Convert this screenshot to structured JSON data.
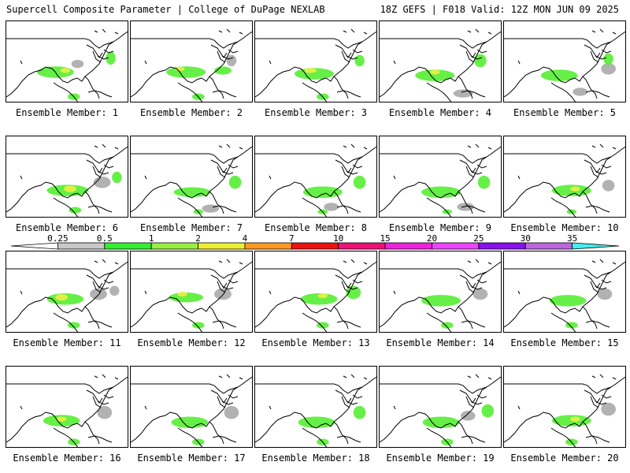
{
  "header": {
    "title_left": "Supercell Composite Parameter | College of DuPage NEXLAB",
    "title_right": "18Z GEFS | F018 Valid: 12Z MON JUN 09 2025"
  },
  "panels": [
    {
      "label": "Ensemble Member: 1",
      "blobs": [
        [
          0.4,
          0.62,
          0.3,
          0.14,
          "#55ee33"
        ],
        [
          0.58,
          0.52,
          0.1,
          0.1,
          "#aaaaaa"
        ],
        [
          0.85,
          0.45,
          0.08,
          0.16,
          "#55ee33"
        ],
        [
          0.55,
          0.92,
          0.1,
          0.08,
          "#55ee33"
        ],
        [
          0.48,
          0.6,
          0.08,
          0.06,
          "#eeee44"
        ]
      ]
    },
    {
      "label": "Ensemble Member: 2",
      "blobs": [
        [
          0.45,
          0.62,
          0.32,
          0.14,
          "#55ee33"
        ],
        [
          0.75,
          0.6,
          0.14,
          0.1,
          "#55ee33"
        ],
        [
          0.82,
          0.48,
          0.08,
          0.14,
          "#aaaaaa"
        ],
        [
          0.55,
          0.92,
          0.1,
          0.08,
          "#55ee33"
        ],
        [
          0.4,
          0.58,
          0.08,
          0.05,
          "#eeee44"
        ]
      ]
    },
    {
      "label": "Ensemble Member: 3",
      "blobs": [
        [
          0.48,
          0.64,
          0.32,
          0.14,
          "#55ee33"
        ],
        [
          0.85,
          0.48,
          0.08,
          0.14,
          "#55ee33"
        ],
        [
          0.55,
          0.92,
          0.1,
          0.08,
          "#55ee33"
        ],
        [
          0.45,
          0.6,
          0.1,
          0.06,
          "#eeee44"
        ]
      ]
    },
    {
      "label": "Ensemble Member: 4",
      "blobs": [
        [
          0.45,
          0.66,
          0.32,
          0.14,
          "#55ee33"
        ],
        [
          0.82,
          0.48,
          0.1,
          0.16,
          "#55ee33"
        ],
        [
          0.68,
          0.88,
          0.16,
          0.1,
          "#aaaaaa"
        ],
        [
          0.45,
          0.62,
          0.08,
          0.06,
          "#eeee44"
        ]
      ]
    },
    {
      "label": "Ensemble Member: 5",
      "blobs": [
        [
          0.45,
          0.66,
          0.3,
          0.14,
          "#55ee33"
        ],
        [
          0.85,
          0.58,
          0.12,
          0.14,
          "#aaaaaa"
        ],
        [
          0.85,
          0.46,
          0.08,
          0.14,
          "#55ee33"
        ],
        [
          0.62,
          0.86,
          0.12,
          0.1,
          "#aaaaaa"
        ]
      ]
    },
    {
      "label": "Ensemble Member: 6",
      "blobs": [
        [
          0.5,
          0.66,
          0.34,
          0.14,
          "#55ee33"
        ],
        [
          0.78,
          0.56,
          0.14,
          0.14,
          "#aaaaaa"
        ],
        [
          0.52,
          0.64,
          0.1,
          0.08,
          "#eeee44"
        ],
        [
          0.56,
          0.9,
          0.1,
          0.08,
          "#55ee33"
        ],
        [
          0.9,
          0.5,
          0.08,
          0.14,
          "#55ee33"
        ]
      ]
    },
    {
      "label": "Ensemble Member: 7",
      "blobs": [
        [
          0.5,
          0.68,
          0.3,
          0.12,
          "#55ee33"
        ],
        [
          0.85,
          0.56,
          0.1,
          0.16,
          "#55ee33"
        ],
        [
          0.65,
          0.88,
          0.14,
          0.1,
          "#aaaaaa"
        ],
        [
          0.55,
          0.92,
          0.08,
          0.06,
          "#55ee33"
        ]
      ]
    },
    {
      "label": "Ensemble Member: 8",
      "blobs": [
        [
          0.55,
          0.68,
          0.32,
          0.14,
          "#55ee33"
        ],
        [
          0.85,
          0.56,
          0.1,
          0.16,
          "#55ee33"
        ],
        [
          0.62,
          0.86,
          0.12,
          0.1,
          "#aaaaaa"
        ],
        [
          0.55,
          0.92,
          0.08,
          0.06,
          "#55ee33"
        ]
      ]
    },
    {
      "label": "Ensemble Member: 9",
      "blobs": [
        [
          0.5,
          0.68,
          0.32,
          0.14,
          "#55ee33"
        ],
        [
          0.85,
          0.56,
          0.1,
          0.16,
          "#55ee33"
        ],
        [
          0.7,
          0.86,
          0.14,
          0.1,
          "#aaaaaa"
        ],
        [
          0.55,
          0.92,
          0.08,
          0.06,
          "#55ee33"
        ]
      ]
    },
    {
      "label": "Ensemble Member: 10",
      "blobs": [
        [
          0.55,
          0.66,
          0.32,
          0.14,
          "#55ee33"
        ],
        [
          0.85,
          0.6,
          0.1,
          0.14,
          "#aaaaaa"
        ],
        [
          0.58,
          0.64,
          0.08,
          0.06,
          "#eeee44"
        ],
        [
          0.55,
          0.92,
          0.08,
          0.06,
          "#55ee33"
        ]
      ]
    },
    {
      "label": "Ensemble Member: 11",
      "blobs": [
        [
          0.48,
          0.58,
          0.3,
          0.14,
          "#55ee33"
        ],
        [
          0.75,
          0.52,
          0.14,
          0.14,
          "#aaaaaa"
        ],
        [
          0.45,
          0.56,
          0.1,
          0.08,
          "#eeee44"
        ],
        [
          0.55,
          0.9,
          0.1,
          0.08,
          "#55ee33"
        ],
        [
          0.88,
          0.48,
          0.08,
          0.12,
          "#aaaaaa"
        ]
      ]
    },
    {
      "label": "Ensemble Member: 12",
      "blobs": [
        [
          0.45,
          0.56,
          0.28,
          0.12,
          "#55ee33"
        ],
        [
          0.75,
          0.52,
          0.14,
          0.14,
          "#aaaaaa"
        ],
        [
          0.42,
          0.52,
          0.08,
          0.06,
          "#eeee44"
        ],
        [
          0.55,
          0.9,
          0.1,
          0.08,
          "#55ee33"
        ]
      ]
    },
    {
      "label": "Ensemble Member: 13",
      "blobs": [
        [
          0.52,
          0.58,
          0.3,
          0.14,
          "#55ee33"
        ],
        [
          0.8,
          0.5,
          0.12,
          0.16,
          "#55ee33"
        ],
        [
          0.55,
          0.54,
          0.08,
          0.06,
          "#eeee44"
        ],
        [
          0.55,
          0.9,
          0.1,
          0.08,
          "#55ee33"
        ]
      ]
    },
    {
      "label": "Ensemble Member: 14",
      "blobs": [
        [
          0.5,
          0.6,
          0.32,
          0.14,
          "#55ee33"
        ],
        [
          0.82,
          0.52,
          0.12,
          0.14,
          "#aaaaaa"
        ],
        [
          0.55,
          0.9,
          0.1,
          0.08,
          "#55ee33"
        ]
      ]
    },
    {
      "label": "Ensemble Member: 15",
      "blobs": [
        [
          0.52,
          0.6,
          0.3,
          0.14,
          "#55ee33"
        ],
        [
          0.82,
          0.52,
          0.12,
          0.14,
          "#aaaaaa"
        ],
        [
          0.55,
          0.9,
          0.1,
          0.08,
          "#55ee33"
        ]
      ]
    },
    {
      "label": "Ensemble Member: 16",
      "blobs": [
        [
          0.45,
          0.66,
          0.3,
          0.14,
          "#55ee33"
        ],
        [
          0.8,
          0.56,
          0.12,
          0.16,
          "#aaaaaa"
        ],
        [
          0.45,
          0.64,
          0.08,
          0.06,
          "#eeee44"
        ],
        [
          0.55,
          0.92,
          0.1,
          0.08,
          "#55ee33"
        ]
      ]
    },
    {
      "label": "Ensemble Member: 17",
      "blobs": [
        [
          0.48,
          0.68,
          0.3,
          0.14,
          "#55ee33"
        ],
        [
          0.82,
          0.56,
          0.12,
          0.16,
          "#aaaaaa"
        ],
        [
          0.55,
          0.92,
          0.1,
          0.08,
          "#55ee33"
        ]
      ]
    },
    {
      "label": "Ensemble Member: 18",
      "blobs": [
        [
          0.5,
          0.68,
          0.3,
          0.14,
          "#55ee33"
        ],
        [
          0.85,
          0.56,
          0.1,
          0.16,
          "#55ee33"
        ],
        [
          0.55,
          0.92,
          0.1,
          0.08,
          "#55ee33"
        ]
      ]
    },
    {
      "label": "Ensemble Member: 19",
      "blobs": [
        [
          0.5,
          0.68,
          0.3,
          0.14,
          "#55ee33"
        ],
        [
          0.88,
          0.54,
          0.1,
          0.16,
          "#55ee33"
        ],
        [
          0.72,
          0.6,
          0.12,
          0.12,
          "#aaaaaa"
        ],
        [
          0.55,
          0.92,
          0.1,
          0.08,
          "#55ee33"
        ]
      ]
    },
    {
      "label": "Ensemble Member: 20",
      "blobs": [
        [
          0.55,
          0.66,
          0.32,
          0.14,
          "#55ee33"
        ],
        [
          0.85,
          0.52,
          0.12,
          0.16,
          "#aaaaaa"
        ],
        [
          0.58,
          0.64,
          0.08,
          0.06,
          "#eeee44"
        ],
        [
          0.55,
          0.92,
          0.1,
          0.08,
          "#55ee33"
        ]
      ]
    }
  ],
  "colorbar": {
    "labels": [
      "0.25",
      "0.5",
      "1",
      "2",
      "4",
      "7",
      "10",
      "15",
      "20",
      "25",
      "30",
      "35"
    ],
    "colors": [
      "#ffffff",
      "#c8c8c8",
      "#33ee33",
      "#99ee44",
      "#eeee33",
      "#ff9922",
      "#ee1111",
      "#ee1177",
      "#ee22dd",
      "#ee44ff",
      "#8811ee",
      "#bb66dd",
      "#44eeee"
    ]
  }
}
